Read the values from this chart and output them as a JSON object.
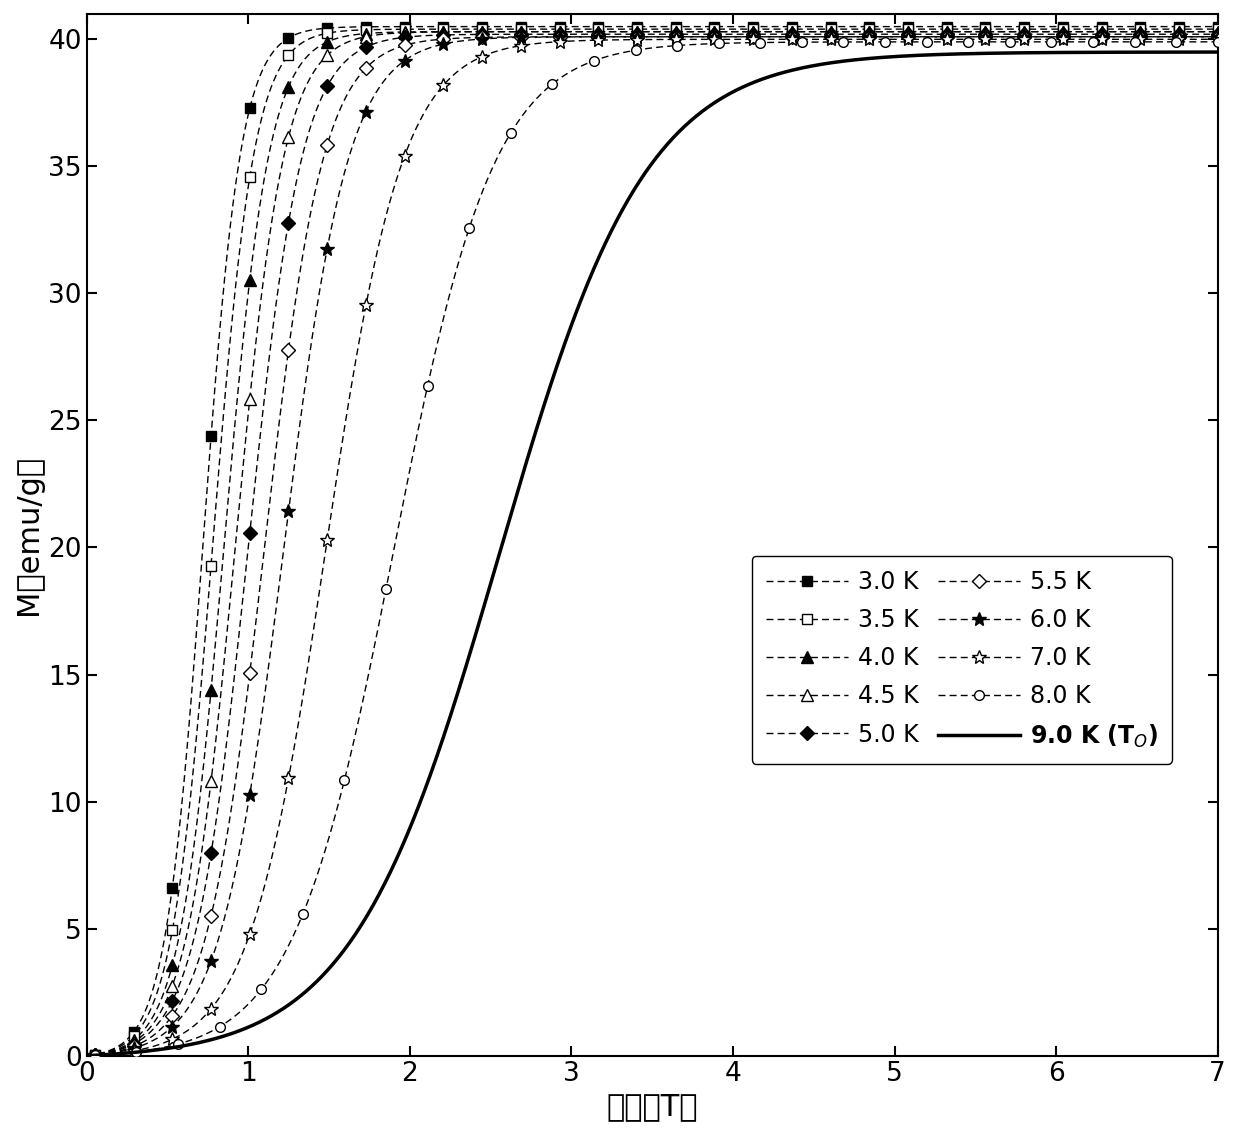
{
  "xlabel": "磁场（T）",
  "ylabel": "M（emu/g）",
  "xlim": [
    0,
    7
  ],
  "ylim": [
    0,
    41
  ],
  "xticks": [
    0,
    1,
    2,
    3,
    4,
    5,
    6,
    7
  ],
  "yticks": [
    0,
    5,
    10,
    15,
    20,
    25,
    30,
    35,
    40
  ],
  "series": [
    {
      "label": "3.0 K",
      "filled": true,
      "marker": "s",
      "M_sat": 40.5,
      "x0": 0.72,
      "k": 8.5,
      "n_markers": 30
    },
    {
      "label": "3.5 K",
      "filled": false,
      "marker": "s",
      "M_sat": 40.4,
      "x0": 0.78,
      "k": 7.8,
      "n_markers": 30
    },
    {
      "label": "4.0 K",
      "filled": true,
      "marker": "^",
      "M_sat": 40.3,
      "x0": 0.85,
      "k": 7.2,
      "n_markers": 30
    },
    {
      "label": "4.5 K",
      "filled": false,
      "marker": "^",
      "M_sat": 40.3,
      "x0": 0.92,
      "k": 6.6,
      "n_markers": 30
    },
    {
      "label": "5.0 K",
      "filled": true,
      "marker": "D",
      "M_sat": 40.2,
      "x0": 1.0,
      "k": 6.0,
      "n_markers": 30
    },
    {
      "label": "5.5 K",
      "filled": false,
      "marker": "D",
      "M_sat": 40.1,
      "x0": 1.1,
      "k": 5.5,
      "n_markers": 30
    },
    {
      "label": "6.0 K",
      "filled": true,
      "marker": "*",
      "M_sat": 40.1,
      "x0": 1.22,
      "k": 5.0,
      "n_markers": 30
    },
    {
      "label": "7.0 K",
      "filled": false,
      "marker": "*",
      "M_sat": 40.0,
      "x0": 1.48,
      "k": 4.2,
      "n_markers": 30
    },
    {
      "label": "8.0 K",
      "filled": false,
      "marker": "o",
      "M_sat": 39.9,
      "x0": 1.9,
      "k": 3.2,
      "n_markers": 28
    },
    {
      "label": "9.0 K",
      "filled": false,
      "marker": null,
      "M_sat": 39.5,
      "x0": 2.55,
      "k": 2.2,
      "n_markers": 0
    }
  ],
  "legend_fontsize": 17,
  "axis_fontsize": 22,
  "tick_fontsize": 19
}
